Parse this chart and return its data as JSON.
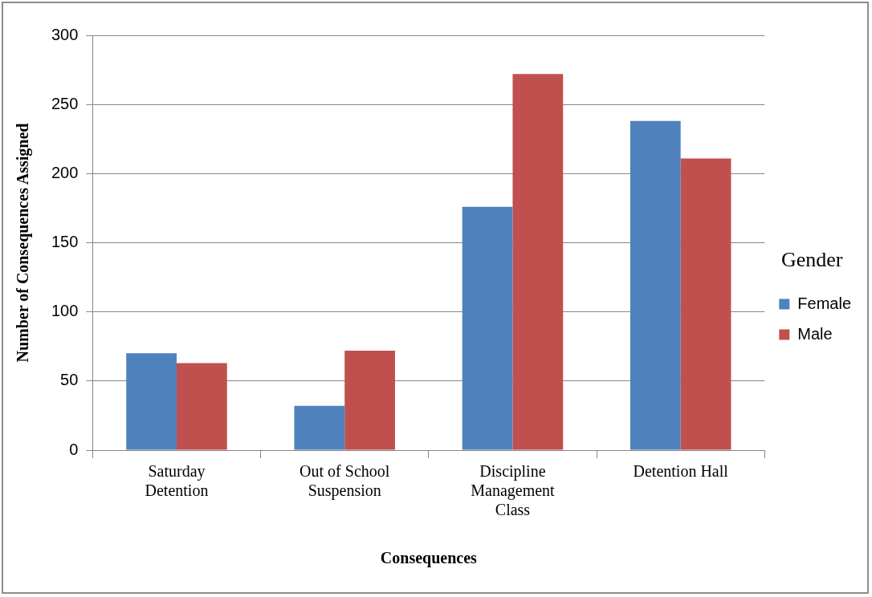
{
  "chart_data": {
    "type": "bar",
    "xlabel": "Consequences",
    "ylabel": "Number of Consequences Assigned",
    "legend_title": "Gender",
    "categories": [
      "Saturday Detention",
      "Out of School Suspension",
      "Discipline Management Class",
      "Detention Hall"
    ],
    "series": [
      {
        "name": "Female",
        "color": "#4f81bd",
        "values": [
          70,
          32,
          176,
          238
        ]
      },
      {
        "name": "Male",
        "color": "#c0504d",
        "values": [
          63,
          72,
          272,
          211
        ]
      }
    ],
    "ylim": [
      0,
      300
    ],
    "yticks": [
      0,
      50,
      100,
      150,
      200,
      250,
      300
    ],
    "grid": "y",
    "legend": "right"
  }
}
